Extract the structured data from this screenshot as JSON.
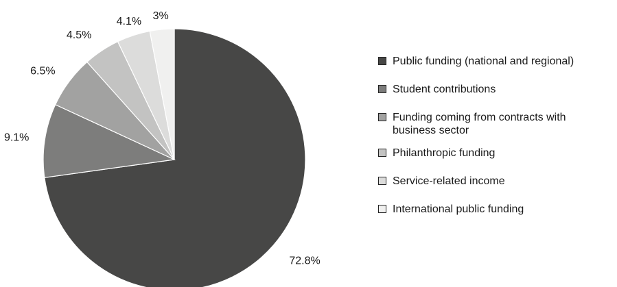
{
  "chart_data": {
    "type": "pie",
    "title": "",
    "slices": [
      {
        "label": "Public funding (national and regional)",
        "value": 72.8,
        "value_label": "72.8%",
        "color": "#474746"
      },
      {
        "label": "Student contributions",
        "value": 9.1,
        "value_label": "9.1%",
        "color": "#7d7d7c"
      },
      {
        "label": "Funding coming from contracts with business sector",
        "value": 6.5,
        "value_label": "6.5%",
        "color": "#a2a2a1"
      },
      {
        "label": "Philanthropic funding",
        "value": 4.5,
        "value_label": "4.5%",
        "color": "#c3c3c2"
      },
      {
        "label": "Service-related income",
        "value": 4.1,
        "value_label": "4.1%",
        "color": "#dcdcdb"
      },
      {
        "label": "International public funding",
        "value": 3,
        "value_label": "3%",
        "color": "#f0f0ef"
      }
    ],
    "start": "12 o'clock",
    "direction": "clockwise",
    "legend_position": "right"
  }
}
